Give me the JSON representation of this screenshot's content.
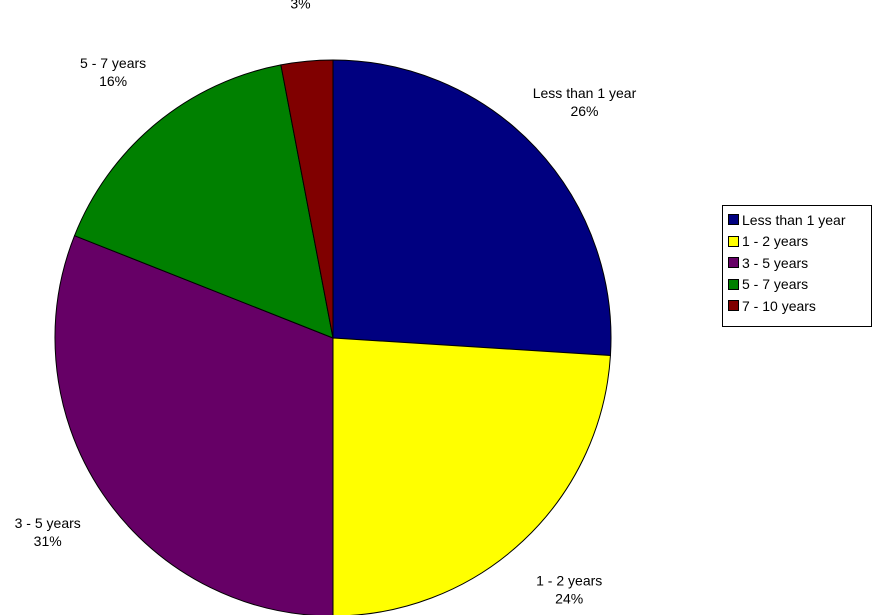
{
  "chart_data": {
    "type": "pie",
    "title": "",
    "categories": [
      "Less than 1 year",
      "1 - 2 years",
      "3 - 5 years",
      "5 - 7 years",
      "7 - 10 years"
    ],
    "values": [
      26,
      24,
      31,
      16,
      3
    ],
    "labels": [
      {
        "name": "Less than 1 year",
        "percent": "26%"
      },
      {
        "name": "1 - 2 years",
        "percent": "24%"
      },
      {
        "name": "3 - 5 years",
        "percent": "31%"
      },
      {
        "name": "5 - 7 years",
        "percent": "16%"
      },
      {
        "name": "7 - 10 years",
        "percent": "3%"
      }
    ],
    "colors": [
      "#000080",
      "#FFFF00",
      "#660066",
      "#008000",
      "#800000"
    ],
    "start_angle_deg": 0,
    "direction": "clockwise",
    "legend_position": "right"
  }
}
